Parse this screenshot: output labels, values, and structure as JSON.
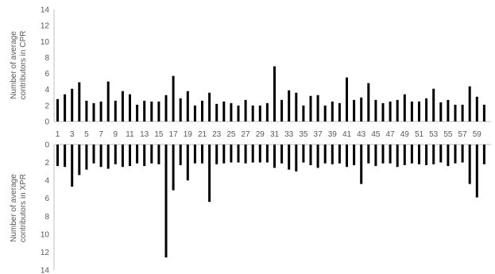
{
  "chart_data": [
    {
      "type": "bar",
      "ylabel_lines": [
        "Number of average",
        "contributors in CPR"
      ],
      "ylim": [
        0,
        14
      ],
      "yticks": [
        0,
        2,
        4,
        6,
        8,
        10,
        12,
        14
      ],
      "x_tick_labels": [
        "1",
        "3",
        "5",
        "7",
        "9",
        "11",
        "13",
        "15",
        "17",
        "19",
        "21",
        "23",
        "25",
        "27",
        "29",
        "31",
        "33",
        "35",
        "37",
        "39",
        "41",
        "43",
        "45",
        "47",
        "49",
        "51",
        "53",
        "55",
        "57",
        "59"
      ],
      "x": [
        1,
        2,
        3,
        4,
        5,
        6,
        7,
        8,
        9,
        10,
        11,
        12,
        13,
        14,
        15,
        16,
        17,
        18,
        19,
        20,
        21,
        22,
        23,
        24,
        25,
        26,
        27,
        28,
        29,
        30,
        31,
        32,
        33,
        34,
        35,
        36,
        37,
        38,
        39,
        40,
        41,
        42,
        43,
        44,
        45,
        46,
        47,
        48,
        49,
        50,
        51,
        52,
        53,
        54,
        55,
        56,
        57,
        58,
        59,
        60
      ],
      "values": [
        2.8,
        3.4,
        4.1,
        4.9,
        2.6,
        2.3,
        2.5,
        5.0,
        2.6,
        3.8,
        3.4,
        2.1,
        2.6,
        2.5,
        2.5,
        3.3,
        5.7,
        2.9,
        3.8,
        2.0,
        2.6,
        3.6,
        2.2,
        2.5,
        2.3,
        2.0,
        2.7,
        2.0,
        2.0,
        2.3,
        6.9,
        2.7,
        3.9,
        3.6,
        2.0,
        3.2,
        3.3,
        2.0,
        2.5,
        2.3,
        5.5,
        2.7,
        3.0,
        4.8,
        2.7,
        2.3,
        2.5,
        2.7,
        3.4,
        2.5,
        2.5,
        2.9,
        4.1,
        2.4,
        2.7,
        2.1,
        2.1,
        4.4,
        3.1,
        2.1
      ],
      "grid": false
    },
    {
      "type": "bar",
      "ylabel_lines": [
        "Number of average",
        "contributors in XPR"
      ],
      "ylim": [
        0,
        14
      ],
      "yaxis_inverted": true,
      "yticks": [
        0,
        2,
        4,
        6,
        8,
        10,
        12,
        14
      ],
      "x": [
        1,
        2,
        3,
        4,
        5,
        6,
        7,
        8,
        9,
        10,
        11,
        12,
        13,
        14,
        15,
        16,
        17,
        18,
        19,
        20,
        21,
        22,
        23,
        24,
        25,
        26,
        27,
        28,
        29,
        30,
        31,
        32,
        33,
        34,
        35,
        36,
        37,
        38,
        39,
        40,
        41,
        42,
        43,
        44,
        45,
        46,
        47,
        48,
        49,
        50,
        51,
        52,
        53,
        54,
        55,
        56,
        57,
        58,
        59,
        60
      ],
      "values": [
        2.4,
        2.5,
        4.7,
        3.4,
        2.8,
        2.1,
        2.5,
        2.7,
        2.2,
        2.5,
        2.4,
        2.1,
        2.4,
        2.1,
        2.2,
        12.6,
        5.1,
        2.3,
        4.0,
        2.1,
        2.1,
        6.4,
        2.2,
        2.1,
        2.0,
        2.0,
        2.1,
        2.0,
        2.0,
        2.0,
        2.6,
        2.1,
        2.8,
        3.0,
        2.0,
        2.3,
        2.6,
        2.1,
        2.2,
        2.1,
        2.5,
        2.3,
        4.4,
        2.1,
        2.4,
        2.1,
        2.1,
        2.5,
        2.3,
        2.1,
        2.2,
        2.3,
        2.2,
        2.0,
        2.4,
        2.1,
        2.0,
        4.4,
        5.9,
        2.2
      ],
      "grid": false
    }
  ]
}
